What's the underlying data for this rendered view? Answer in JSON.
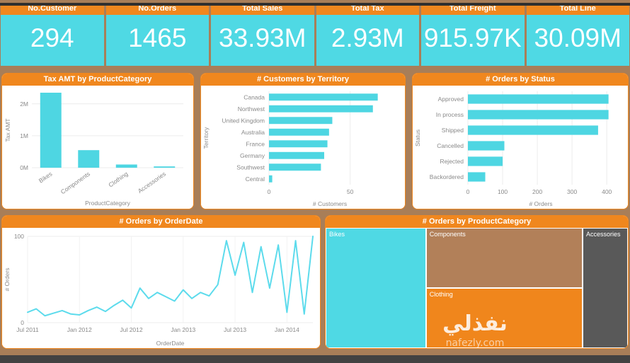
{
  "page": {
    "background": "#a87e58",
    "accent_orange": "#F0871E",
    "accent_cyan": "#4FD9E4"
  },
  "kpis": [
    {
      "label": "No.Customer",
      "value": "294"
    },
    {
      "label": "No.Orders",
      "value": "1465"
    },
    {
      "label": "Total Sales",
      "value": "33.93M"
    },
    {
      "label": "Total Tax",
      "value": "2.93M"
    },
    {
      "label": "Total Freight",
      "value": "915.97K"
    },
    {
      "label": "Total Line",
      "value": "30.09M"
    }
  ],
  "watermark": {
    "arabic": "نفذلي",
    "site": "nafezly.com"
  },
  "chart_data": [
    {
      "id": "tax-by-category",
      "type": "bar",
      "title": "Tax AMT by ProductCategory",
      "categories": [
        "Bikes",
        "Components",
        "Clothing",
        "Accessories"
      ],
      "values": [
        2350000,
        550000,
        100000,
        40000
      ],
      "xlabel": "ProductCategory",
      "ylabel": "Tax AMT",
      "ylim": [
        0,
        2350000
      ],
      "yticks": [
        "0M",
        "1M",
        "2M"
      ],
      "ytick_values": [
        0,
        1000000,
        2000000
      ],
      "grid": true,
      "legend": false,
      "bar_color": "#4ED6E2"
    },
    {
      "id": "customers-by-territory",
      "type": "hbar",
      "title": "# Customers by Territory",
      "categories": [
        "Canada",
        "Northwest",
        "United Kingdom",
        "Australia",
        "France",
        "Germany",
        "Southwest",
        "Central"
      ],
      "values": [
        67,
        64,
        39,
        37,
        36,
        34,
        32,
        2
      ],
      "xlabel": "# Customers",
      "ylabel": "Territory",
      "xlim": [
        0,
        75
      ],
      "xticks": [
        0,
        50
      ],
      "grid": true,
      "legend": false,
      "bar_color": "#4ED6E2"
    },
    {
      "id": "orders-by-status",
      "type": "hbar",
      "title": "# Orders by Status",
      "categories": [
        "Approved",
        "In process",
        "Shipped",
        "Cancelled",
        "Rejected",
        "Backordered"
      ],
      "values": [
        405,
        405,
        375,
        105,
        100,
        50
      ],
      "xlabel": "# Orders",
      "ylabel": "Status",
      "xlim": [
        0,
        420
      ],
      "xticks": [
        0,
        100,
        200,
        300,
        400
      ],
      "grid": true,
      "legend": false,
      "bar_color": "#4ED6E2"
    },
    {
      "id": "orders-by-orderdate",
      "type": "line",
      "title": "# Orders by OrderDate",
      "xlabel": "OrderDate",
      "ylabel": "# Orders",
      "ylim": [
        0,
        100
      ],
      "yticks": [
        0,
        100
      ],
      "tick_indices": [
        0,
        6,
        12,
        18,
        24,
        30
      ],
      "tick_labels": [
        "Jul 2011",
        "Jan 2012",
        "Jul 2012",
        "Jan 2013",
        "Jul 2013",
        "Jan 2014"
      ],
      "values": [
        12,
        16,
        8,
        11,
        14,
        10,
        9,
        14,
        18,
        13,
        20,
        26,
        17,
        40,
        28,
        35,
        30,
        25,
        38,
        28,
        35,
        31,
        44,
        95,
        55,
        93,
        35,
        88,
        40,
        90,
        12,
        95,
        10,
        100
      ],
      "grid": true,
      "legend": false,
      "line_color": "#5CDBEC"
    },
    {
      "id": "orders-by-productcategory",
      "type": "treemap",
      "title": "# Orders by ProductCategory",
      "items": [
        {
          "label": "Bikes",
          "area_share": 0.33,
          "color": "#4FD9E4",
          "rect": [
            0,
            0,
            0.332,
            1
          ]
        },
        {
          "label": "Components",
          "area_share": 0.26,
          "color": "#B28059",
          "rect": [
            0.332,
            0,
            0.518,
            0.5
          ]
        },
        {
          "label": "Clothing",
          "area_share": 0.26,
          "color": "#F0861C",
          "rect": [
            0.332,
            0.5,
            0.518,
            0.5
          ]
        },
        {
          "label": "Accessories",
          "area_share": 0.15,
          "color": "#595959",
          "rect": [
            0.85,
            0,
            0.15,
            1
          ]
        }
      ]
    }
  ]
}
